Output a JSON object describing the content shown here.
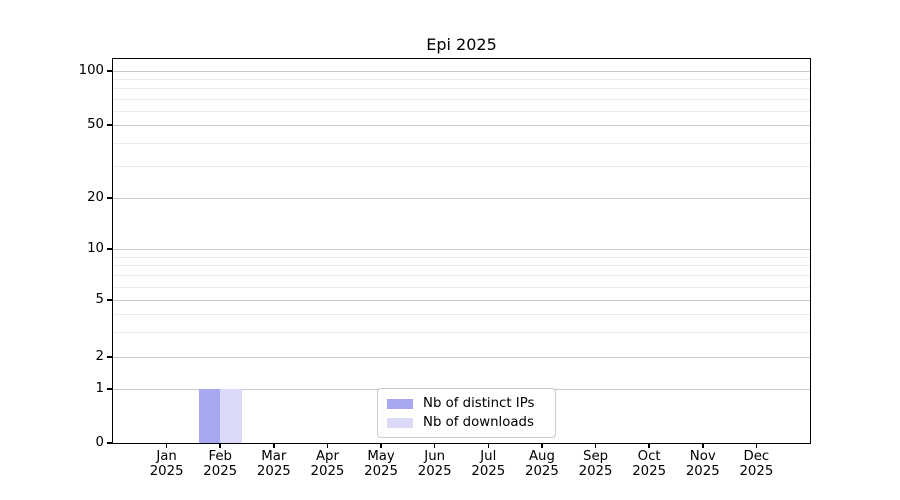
{
  "chart_data": {
    "type": "bar",
    "title": "Epi 2025",
    "x_axis": {
      "categories": [
        {
          "month": "Jan",
          "year": "2025"
        },
        {
          "month": "Feb",
          "year": "2025"
        },
        {
          "month": "Mar",
          "year": "2025"
        },
        {
          "month": "Apr",
          "year": "2025"
        },
        {
          "month": "May",
          "year": "2025"
        },
        {
          "month": "Jun",
          "year": "2025"
        },
        {
          "month": "Jul",
          "year": "2025"
        },
        {
          "month": "Aug",
          "year": "2025"
        },
        {
          "month": "Sep",
          "year": "2025"
        },
        {
          "month": "Oct",
          "year": "2025"
        },
        {
          "month": "Nov",
          "year": "2025"
        },
        {
          "month": "Dec",
          "year": "2025"
        }
      ]
    },
    "y_axis": {
      "ticks": [
        0,
        1,
        2,
        5,
        10,
        20,
        50,
        100
      ],
      "minor_ticks": [
        3,
        4,
        6,
        7,
        8,
        9,
        30,
        40,
        60,
        70,
        80,
        90
      ],
      "range": [
        0,
        117
      ],
      "scale": "asinh-log"
    },
    "series": [
      {
        "name": "Nb of distinct IPs",
        "color": "#a7a7ef",
        "values": [
          0,
          1,
          0,
          0,
          0,
          0,
          0,
          0,
          0,
          0,
          0,
          0
        ]
      },
      {
        "name": "Nb of downloads",
        "color": "#dadaf8",
        "values": [
          0,
          1,
          0,
          0,
          0,
          0,
          0,
          0,
          0,
          0,
          0,
          0
        ]
      }
    ],
    "grid": {
      "orientation": "horizontal",
      "major_color": "#c9c9c9",
      "minor_color": "#ececec"
    },
    "legend": {
      "position": "lower center"
    }
  }
}
